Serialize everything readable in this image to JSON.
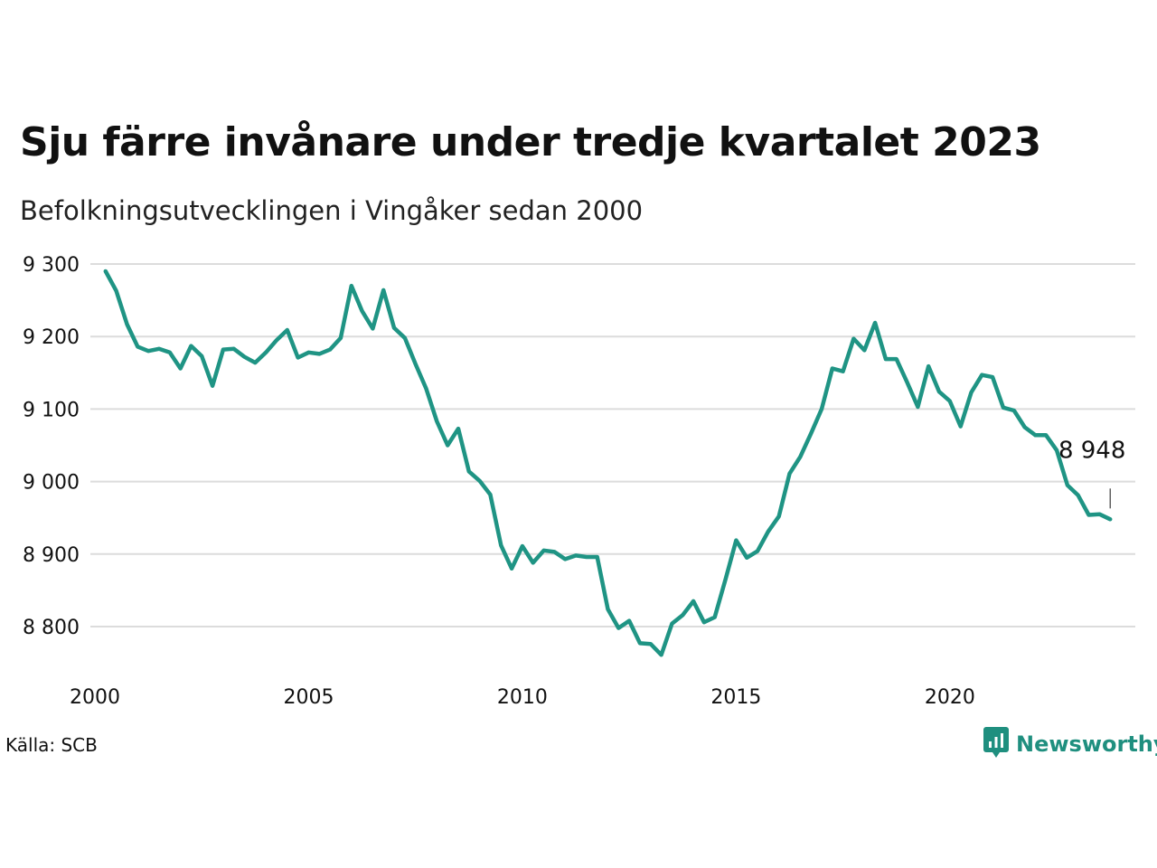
{
  "title": "Sju färre invånare under tredje kvartalet 2023",
  "subtitle": "Befolkningsutvecklingen i Vingåker sedan 2000",
  "source": "Källa: SCB",
  "brand": {
    "name": "Newsworthy",
    "icon": "bar-chart-speech-bubble-icon"
  },
  "colors": {
    "line": "#1f9484",
    "grid": "#dcdcdc",
    "text": "#111111",
    "brand": "#1f8f7f"
  },
  "chart_data": {
    "type": "line",
    "title": "Sju färre invånare under tredje kvartalet 2023",
    "subtitle": "Befolkningsutvecklingen i Vingåker sedan 2000",
    "xlabel": "",
    "ylabel": "",
    "x_ticks": [
      2000,
      2005,
      2010,
      2015,
      2020
    ],
    "x_tick_labels": [
      "2000",
      "2005",
      "2010",
      "2015",
      "2020"
    ],
    "y_ticks": [
      8800,
      8900,
      9000,
      9100,
      9200,
      9300
    ],
    "y_tick_labels": [
      "8 800",
      "8 900",
      "9 000",
      "9 100",
      "9 200",
      "9 300"
    ],
    "xlim": [
      2000.0,
      2024.0
    ],
    "ylim": [
      8760,
      9310
    ],
    "grid": "horizontal",
    "end_label": "8 948",
    "series": [
      {
        "x": [
          2000.25,
          2000.5,
          2000.75,
          2001.0,
          2001.25,
          2001.5,
          2001.75,
          2002.0,
          2002.25,
          2002.5,
          2002.75,
          2003.0,
          2003.25,
          2003.5,
          2003.75,
          2004.0,
          2004.25,
          2004.5,
          2004.75,
          2005.0,
          2005.25,
          2005.5,
          2005.75,
          2006.0,
          2006.25,
          2006.5,
          2006.75,
          2007.0,
          2007.25,
          2007.5,
          2007.75,
          2008.0,
          2008.25,
          2008.5,
          2008.75,
          2009.0,
          2009.25,
          2009.5,
          2009.75,
          2010.0,
          2010.25,
          2010.5,
          2010.75,
          2011.0,
          2011.25,
          2011.5,
          2011.75,
          2012.0,
          2012.25,
          2012.5,
          2012.75,
          2013.0,
          2013.25,
          2013.5,
          2013.75,
          2014.0,
          2014.25,
          2014.5,
          2014.75,
          2015.0,
          2015.25,
          2015.5,
          2015.75,
          2016.0,
          2016.25,
          2016.5,
          2016.75,
          2017.0,
          2017.25,
          2017.5,
          2017.75,
          2018.0,
          2018.25,
          2018.5,
          2018.75,
          2019.0,
          2019.25,
          2019.5,
          2019.75,
          2020.0,
          2020.25,
          2020.5,
          2020.75,
          2021.0,
          2021.25,
          2021.5,
          2021.75,
          2022.0,
          2022.25,
          2022.5,
          2022.75,
          2023.0,
          2023.25,
          2023.5,
          2023.75
        ],
        "values": [
          9290,
          9263,
          9217,
          9186,
          9180,
          9183,
          9178,
          9156,
          9187,
          9173,
          9132,
          9182,
          9183,
          9172,
          9164,
          9178,
          9195,
          9209,
          9171,
          9178,
          9176,
          9182,
          9198,
          9270,
          9235,
          9211,
          9264,
          9212,
          9198,
          9162,
          9128,
          9083,
          9050,
          9073,
          9014,
          9001,
          8982,
          8912,
          8880,
          8911,
          8888,
          8905,
          8903,
          8893,
          8898,
          8896,
          8896,
          8824,
          8798,
          8808,
          8777,
          8776,
          8761,
          8804,
          8816,
          8835,
          8806,
          8813,
          8865,
          8919,
          8895,
          8904,
          8931,
          8952,
          9011,
          9034,
          9066,
          9100,
          9156,
          9152,
          9197,
          9181,
          9219,
          9169,
          9169,
          9137,
          9103,
          9159,
          9124,
          9111,
          9076,
          9123,
          9147,
          9144,
          9102,
          9098,
          9075,
          9064,
          9064,
          9043,
          8995,
          8981,
          8954,
          8955,
          8948
        ]
      }
    ]
  }
}
